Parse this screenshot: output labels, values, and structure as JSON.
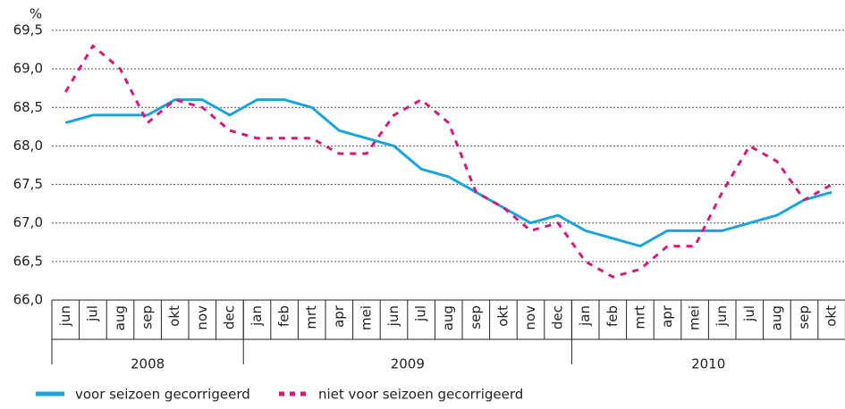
{
  "chart_data": {
    "type": "line",
    "y_label": "%",
    "categories": [
      "jun",
      "jul",
      "aug",
      "sep",
      "okt",
      "nov",
      "dec",
      "jan",
      "feb",
      "mrt",
      "apr",
      "mei",
      "jun",
      "jul",
      "aug",
      "sep",
      "okt",
      "nov",
      "dec",
      "jan",
      "feb",
      "mrt",
      "apr",
      "mei",
      "jun",
      "jul",
      "aug",
      "sep",
      "okt"
    ],
    "category_groups": [
      "2008",
      "2009",
      "2010"
    ],
    "series": [
      {
        "name": "voor seizoen gecorrigeerd",
        "color": "#1ba3dd",
        "dashed": false,
        "values": [
          68.3,
          68.4,
          68.4,
          68.4,
          68.6,
          68.6,
          68.4,
          68.6,
          68.6,
          68.5,
          68.2,
          68.1,
          68.0,
          67.7,
          67.6,
          67.4,
          67.2,
          67.0,
          67.1,
          66.9,
          66.8,
          66.7,
          66.9,
          66.9,
          66.9,
          67.0,
          67.1,
          67.3,
          67.4
        ]
      },
      {
        "name": "niet voor seizoen gecorrigeerd",
        "color": "#d51a7e",
        "dashed": true,
        "values": [
          68.7,
          69.3,
          69.0,
          68.3,
          68.6,
          68.5,
          68.2,
          68.1,
          68.1,
          68.1,
          67.9,
          67.9,
          68.4,
          68.6,
          68.3,
          67.4,
          67.2,
          66.9,
          67.0,
          66.5,
          66.3,
          66.4,
          66.7,
          66.7,
          67.4,
          68.0,
          67.8,
          67.3,
          67.5
        ]
      }
    ],
    "ylim": [
      66.0,
      69.5
    ],
    "yticks": [
      {
        "value": 66.0,
        "label": "66,0"
      },
      {
        "value": 66.5,
        "label": "66,5"
      },
      {
        "value": 67.0,
        "label": "67,0"
      },
      {
        "value": 67.5,
        "label": "67,5"
      },
      {
        "value": 68.0,
        "label": "68,0"
      },
      {
        "value": 68.5,
        "label": "68,5"
      },
      {
        "value": 69.0,
        "label": "69,0"
      },
      {
        "value": 69.5,
        "label": "69,5"
      }
    ],
    "grid": true
  }
}
